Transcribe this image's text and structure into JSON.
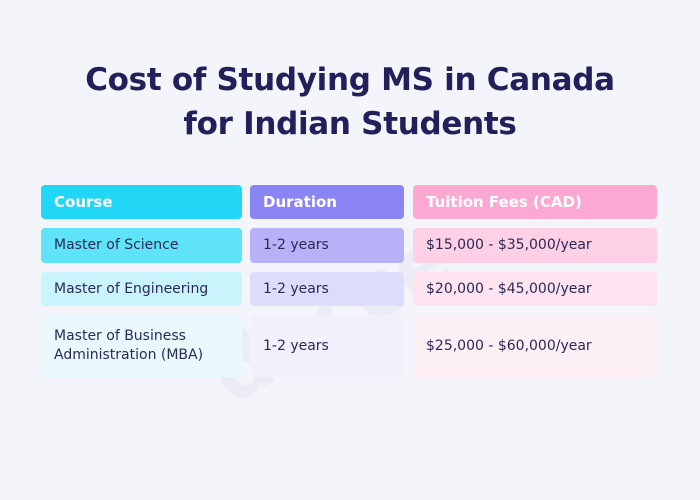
{
  "title_line1": "Cost of Studying MS in Canada",
  "title_line2": "for Indian Students",
  "watermark": "docce",
  "table": {
    "headers": [
      "Course",
      "Duration",
      "Tuition Fees (CAD)"
    ],
    "rows": [
      {
        "course": "Master of Science",
        "duration": "1-2 years",
        "fees": "$15,000 - $35,000/year"
      },
      {
        "course": "Master of Engineering",
        "duration": "1-2 years",
        "fees": "$20,000 - $45,000/year"
      },
      {
        "course_line1": "Master of Business",
        "course_line2": "Administration (MBA)",
        "duration": "1-2 years",
        "fees": "$25,000 - $60,000/year"
      }
    ]
  },
  "colors": {
    "header_course": "#22d6f5",
    "header_duration": "#8b84f5",
    "header_fees": "#fba9d3",
    "row1_course": "#5ee3f8",
    "row1_duration": "#b7b2f7",
    "row1_fees": "#fdd0e6",
    "row2_course": "#c9f4fc",
    "row2_duration": "#dedcfb",
    "row2_fees": "#fde4f0",
    "row3_course": "#e9f8fc",
    "row3_duration": "#f1f0fb",
    "row3_fees": "#fcf0f6"
  }
}
